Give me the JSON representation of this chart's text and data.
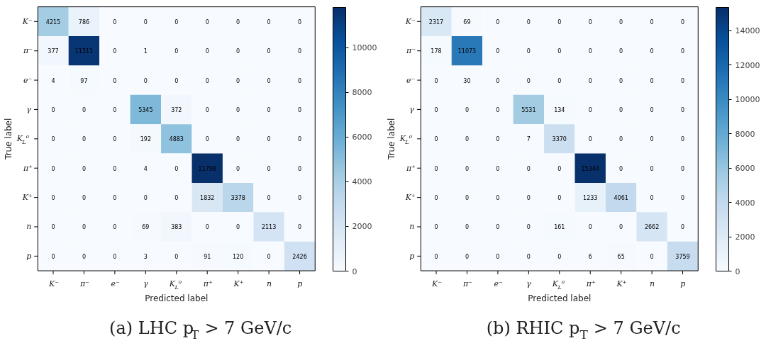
{
  "chart_data": [
    {
      "type": "heatmap",
      "title": "(a) LHC p$_{T}$ > 7 GeV/c",
      "xlabel": "Predicted label",
      "ylabel": "True label",
      "categories": [
        "K⁻",
        "π⁻",
        "e⁻",
        "γ",
        "K$_{L}$⁰",
        "π⁺",
        "K⁺",
        "n",
        "p"
      ],
      "y_categories": [
        "K⁻",
        "π⁻",
        "e⁻",
        "γ",
        "K$_{L}$⁰",
        "π⁺",
        "K⁺",
        "n",
        "p"
      ],
      "cells": [
        [
          4215,
          786,
          0,
          0,
          0,
          0,
          0,
          0,
          0
        ],
        [
          377,
          11511,
          0,
          1,
          0,
          0,
          0,
          0,
          0
        ],
        [
          4,
          97,
          0,
          0,
          0,
          0,
          0,
          0,
          0
        ],
        [
          0,
          0,
          0,
          5345,
          372,
          0,
          0,
          0,
          0
        ],
        [
          0,
          0,
          0,
          192,
          4883,
          0,
          0,
          0,
          0
        ],
        [
          0,
          0,
          0,
          4,
          0,
          11798,
          0,
          0,
          0
        ],
        [
          0,
          0,
          0,
          0,
          0,
          1832,
          3378,
          0,
          0
        ],
        [
          0,
          0,
          0,
          69,
          383,
          0,
          0,
          2113,
          0
        ],
        [
          0,
          0,
          0,
          3,
          0,
          91,
          120,
          0,
          2426
        ]
      ],
      "clim": [
        0,
        11798
      ],
      "cticks": [
        0,
        2000,
        4000,
        6000,
        8000,
        10000
      ],
      "data_labels": true
    },
    {
      "type": "heatmap",
      "title": "(b) RHIC p$_{T}$ > 7 GeV/c",
      "xlabel": "Predicted label",
      "ylabel": "True label",
      "categories": [
        "K⁻",
        "π⁻",
        "e⁻",
        "γ",
        "K$_{L}$⁰",
        "π⁺",
        "K⁺",
        "n",
        "p"
      ],
      "y_categories": [
        "K⁻",
        "π⁻",
        "e⁻",
        "γ",
        "K$_{L}$⁰",
        "π⁺",
        "K⁺",
        "n",
        "p"
      ],
      "cells": [
        [
          2317,
          69,
          0,
          0,
          0,
          0,
          0,
          0,
          0
        ],
        [
          178,
          11073,
          0,
          0,
          0,
          0,
          0,
          0,
          0
        ],
        [
          0,
          30,
          0,
          0,
          0,
          0,
          0,
          0,
          0
        ],
        [
          0,
          0,
          0,
          5531,
          134,
          0,
          0,
          0,
          0
        ],
        [
          0,
          0,
          0,
          7,
          3370,
          0,
          0,
          0,
          0
        ],
        [
          0,
          0,
          0,
          0,
          0,
          15344,
          0,
          0,
          0
        ],
        [
          0,
          0,
          0,
          0,
          0,
          1233,
          4061,
          0,
          0
        ],
        [
          0,
          0,
          0,
          0,
          161,
          0,
          0,
          2662,
          0
        ],
        [
          0,
          0,
          0,
          0,
          0,
          6,
          65,
          0,
          3759
        ]
      ],
      "clim": [
        0,
        15344
      ],
      "cticks": [
        0,
        2000,
        4000,
        6000,
        8000,
        10000,
        12000,
        14000
      ],
      "data_labels": true
    }
  ]
}
